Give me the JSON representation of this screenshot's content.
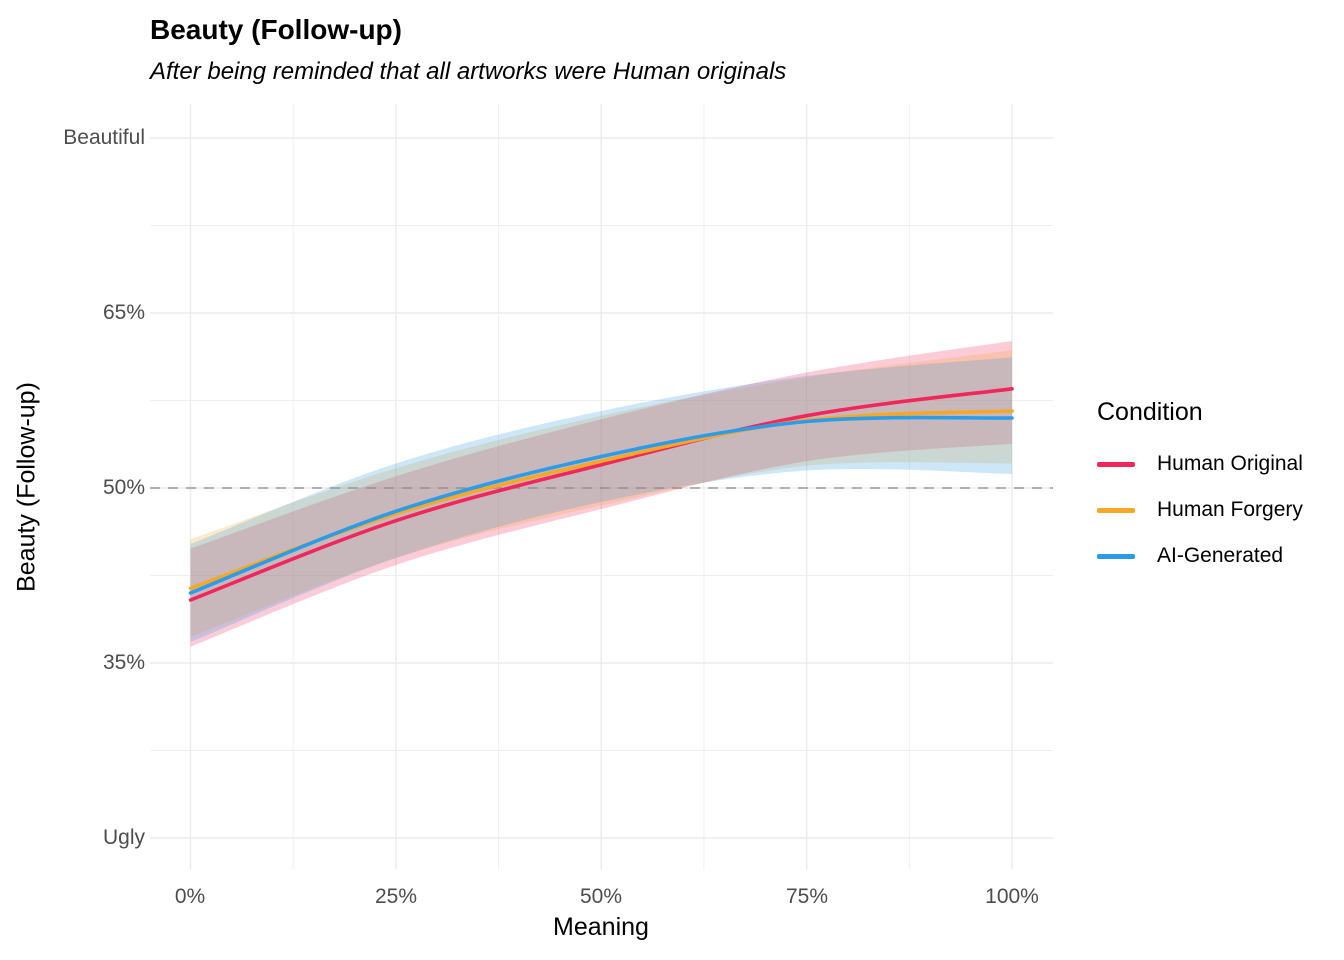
{
  "title": "Beauty (Follow-up)",
  "subtitle": "After being reminded that all artworks were Human originals",
  "axes": {
    "x": {
      "label": "Meaning",
      "tick_labels": [
        "0%",
        "25%",
        "50%",
        "75%",
        "100%"
      ]
    },
    "y": {
      "label": "Beauty (Follow-up)",
      "tick_labels": [
        "Beautiful",
        "65%",
        "50%",
        "35%",
        "Ugly"
      ]
    }
  },
  "legend": {
    "title": "Condition",
    "entries": [
      {
        "label": "Human Original",
        "color": "#F1265B"
      },
      {
        "label": "Human Forgery",
        "color": "#F5A728"
      },
      {
        "label": "AI-Generated",
        "color": "#2D9CE8"
      }
    ]
  },
  "colors": {
    "grid_major": "#EBEBEB",
    "grid_minor": "#EFEFEF",
    "reference_line": "#A8A8A8",
    "tick_text": "#4D4D4D"
  },
  "chart_data": {
    "type": "line",
    "title": "Beauty (Follow-up)",
    "subtitle": "After being reminded that all artworks were Human originals",
    "xlabel": "Meaning",
    "ylabel": "Beauty (Follow-up)",
    "x_unit": "percent",
    "y_unit": "percent",
    "x": [
      0,
      25,
      50,
      75,
      100
    ],
    "x_ticks": [
      0,
      25,
      50,
      75,
      100
    ],
    "y_ticks": [
      {
        "value": 80,
        "label": "Beautiful"
      },
      {
        "value": 65,
        "label": "65%"
      },
      {
        "value": 50,
        "label": "50%"
      },
      {
        "value": 35,
        "label": "35%"
      },
      {
        "value": 20,
        "label": "Ugly"
      }
    ],
    "ylim": [
      17,
      83
    ],
    "grid": true,
    "legend_position": "right",
    "reference_line": {
      "y": 50,
      "style": "dashed"
    },
    "series": [
      {
        "name": "Human Original",
        "color": "#F1265B",
        "values": [
          40.4,
          47.2,
          52.0,
          56.2,
          58.5
        ],
        "ribbon_upper": [
          44.8,
          51.0,
          55.9,
          59.9,
          62.6
        ],
        "ribbon_lower": [
          36.4,
          43.4,
          48.2,
          52.3,
          53.8
        ]
      },
      {
        "name": "Human Forgery",
        "color": "#F5A728",
        "values": [
          41.4,
          47.8,
          52.3,
          55.8,
          56.6
        ],
        "ribbon_upper": [
          45.6,
          51.7,
          56.2,
          59.5,
          61.8
        ],
        "ribbon_lower": [
          37.2,
          44.0,
          48.5,
          51.9,
          52.1
        ]
      },
      {
        "name": "AI-Generated",
        "color": "#2D9CE8",
        "values": [
          41.0,
          48.0,
          52.7,
          55.7,
          56.0
        ],
        "ribbon_upper": [
          45.2,
          52.1,
          56.6,
          59.6,
          61.2
        ],
        "ribbon_lower": [
          36.8,
          44.0,
          48.8,
          51.5,
          51.2
        ]
      }
    ]
  }
}
